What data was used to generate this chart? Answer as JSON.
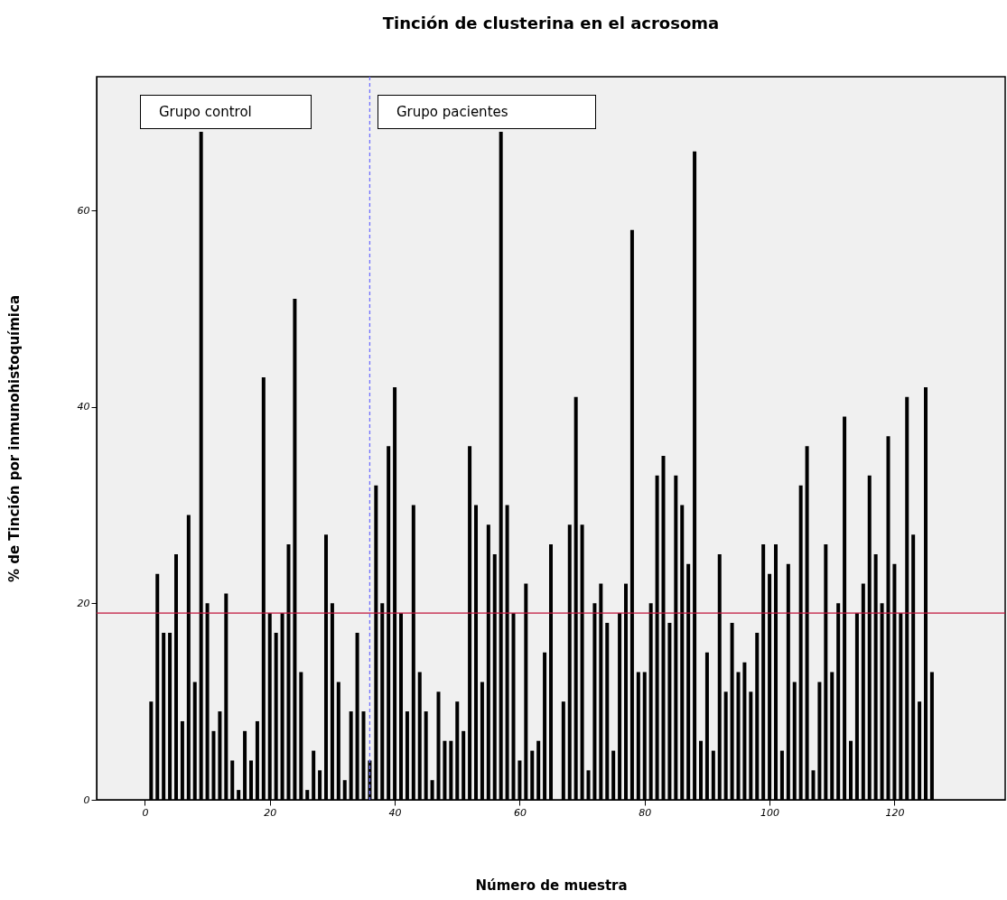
{
  "chart_data": {
    "type": "bar",
    "title": "Tinción de clusterina en el acrosoma",
    "xlabel": "Número de muestra",
    "ylabel": "%  de Tinción por inmunohistoquímica",
    "x": [
      1,
      2,
      3,
      4,
      5,
      6,
      7,
      8,
      9,
      10,
      11,
      12,
      13,
      14,
      15,
      16,
      17,
      18,
      19,
      20,
      21,
      22,
      23,
      24,
      25,
      26,
      27,
      28,
      29,
      30,
      31,
      32,
      33,
      34,
      35,
      36,
      37,
      38,
      39,
      40,
      41,
      42,
      43,
      44,
      45,
      46,
      47,
      48,
      49,
      50,
      51,
      52,
      53,
      54,
      55,
      56,
      57,
      58,
      59,
      60,
      61,
      62,
      63,
      64,
      65,
      66,
      67,
      68,
      69,
      70,
      71,
      72,
      73,
      74,
      75,
      76,
      77,
      78,
      79,
      80,
      81,
      82,
      83,
      84,
      85,
      86,
      87,
      88,
      89,
      90,
      91,
      92,
      93,
      94,
      95,
      96,
      97,
      98,
      99,
      100,
      101,
      102,
      103,
      104,
      105,
      106,
      107,
      108,
      109,
      110,
      111,
      112,
      113,
      114,
      115,
      116,
      117,
      118,
      119,
      120,
      121,
      122,
      123,
      124,
      125,
      126
    ],
    "values": [
      10,
      23,
      17,
      17,
      25,
      8,
      29,
      12,
      68,
      20,
      7,
      9,
      21,
      4,
      1,
      7,
      4,
      8,
      43,
      19,
      17,
      19,
      26,
      51,
      13,
      1,
      5,
      3,
      27,
      20,
      12,
      2,
      9,
      17,
      9,
      4,
      32,
      20,
      36,
      42,
      19,
      9,
      30,
      13,
      9,
      2,
      11,
      6,
      6,
      10,
      7,
      36,
      30,
      12,
      28,
      25,
      68,
      30,
      19,
      4,
      22,
      5,
      6,
      15,
      26,
      null,
      10,
      28,
      41,
      28,
      3,
      20,
      22,
      18,
      5,
      19,
      22,
      58,
      13,
      13,
      20,
      33,
      35,
      18,
      33,
      30,
      24,
      66,
      6,
      15,
      5,
      25,
      11,
      18,
      13,
      14,
      11,
      17,
      26,
      23,
      26,
      5,
      24,
      12,
      32,
      36,
      3,
      12,
      26,
      13,
      20,
      39,
      6,
      19,
      22,
      33,
      25,
      20,
      37,
      24,
      19,
      41,
      27,
      10,
      42,
      13
    ],
    "color": "#000000",
    "xlim": [
      -7,
      137
    ],
    "xticks": [
      0,
      20,
      40,
      60,
      80,
      100,
      120
    ],
    "ylim": [
      0,
      73.6
    ],
    "yticks": [
      0,
      20,
      40,
      60
    ],
    "ref_lines": [
      {
        "axis": "x",
        "value": 36,
        "color": "#7070ff",
        "line_style": "dashed"
      },
      {
        "axis": "y",
        "value": 19,
        "color": "#c0143c",
        "line_style": "solid"
      }
    ],
    "annotations": [
      "Grupo control",
      "Grupo pacientes"
    ]
  }
}
